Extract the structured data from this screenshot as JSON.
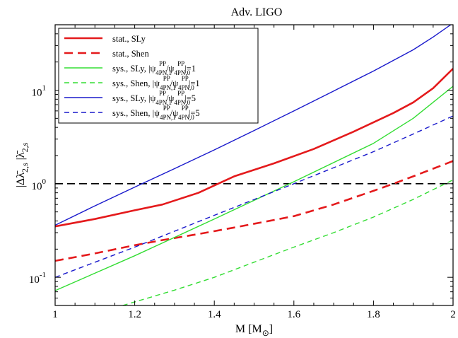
{
  "chart_data": {
    "type": "line",
    "title": "Adv. LIGO",
    "xlabel": "M [M",
    "xlabel_sub": "⊙",
    "xlabel_close": "]",
    "ylabel_parts": [
      "|Δ",
      "λ̄",
      "2,s",
      " |",
      "λ̄",
      "2,s"
    ],
    "xlim": [
      1,
      2
    ],
    "ylim": [
      0.05,
      50
    ],
    "yscale": "log",
    "xticks": [
      "1",
      "1.2",
      "1.4",
      "1.6",
      "1.8",
      "2"
    ],
    "yticks": [
      {
        "base": "10",
        "exp": "-1",
        "value": 0.1
      },
      {
        "base": "10",
        "exp": "0",
        "value": 1
      },
      {
        "base": "10",
        "exp": "1",
        "value": 10
      }
    ],
    "reference_line": {
      "y": 1,
      "color": "#000000",
      "style": "dashed"
    },
    "legend_position": "top-left",
    "series": [
      {
        "name": "stat., SLy",
        "color": "#e41a1c",
        "style": "solid",
        "width": 2.6,
        "x": [
          1.0,
          1.1,
          1.2,
          1.27,
          1.36,
          1.45,
          1.55,
          1.65,
          1.75,
          1.85,
          1.9,
          1.95,
          2.0
        ],
        "y": [
          0.35,
          0.42,
          0.52,
          0.6,
          0.8,
          1.2,
          1.65,
          2.35,
          3.6,
          5.7,
          7.4,
          10.5,
          17
        ]
      },
      {
        "name": "stat., Shen",
        "color": "#e41a1c",
        "style": "dashed",
        "width": 2.6,
        "x": [
          1.0,
          1.1,
          1.2,
          1.27,
          1.36,
          1.45,
          1.55,
          1.6,
          1.7,
          1.8,
          1.85,
          1.9,
          1.95,
          2.0
        ],
        "y": [
          0.15,
          0.18,
          0.22,
          0.25,
          0.29,
          0.34,
          0.41,
          0.45,
          0.6,
          0.84,
          1.0,
          1.2,
          1.45,
          1.75
        ]
      },
      {
        "name": "sys., SLy, |ψ4PN,1PP/ψ4PN,0PP|=1",
        "label_parts": [
          "sys., SLy, |",
          "ψ",
          "4PN,1",
          "PP",
          "/",
          "ψ",
          "4PN,0",
          "PP",
          "|=1"
        ],
        "color": "#33dd33",
        "style": "solid",
        "width": 1.4,
        "x": [
          1.0,
          1.2,
          1.4,
          1.6,
          1.8,
          1.9,
          2.0
        ],
        "y": [
          0.072,
          0.17,
          0.42,
          1.05,
          2.7,
          5.0,
          11
        ]
      },
      {
        "name": "sys., Shen, |ψ4PN,1PP/ψ4PN,0PP|=1",
        "label_parts": [
          "sys., Shen, |",
          "ψ",
          "4PN,1",
          "PP",
          "/",
          "ψ",
          "4PN,0",
          "PP",
          "|=1"
        ],
        "color": "#33dd33",
        "style": "dashed",
        "width": 1.4,
        "x": [
          1.17,
          1.3,
          1.4,
          1.5,
          1.6,
          1.7,
          1.8,
          1.9,
          2.0
        ],
        "y": [
          0.05,
          0.073,
          0.1,
          0.145,
          0.21,
          0.3,
          0.44,
          0.68,
          1.1
        ]
      },
      {
        "name": "sys., SLy, |ψ4PN,1PP/ψ4PN,0PP|=5",
        "label_parts": [
          "sys., SLy, |",
          "ψ",
          "4PN,1",
          "PP",
          "/",
          "ψ",
          "4PN,0",
          "PP",
          "|=5"
        ],
        "color": "#1a1acc",
        "style": "solid",
        "width": 1.4,
        "x": [
          1.0,
          1.1,
          1.2,
          1.3,
          1.4,
          1.5,
          1.6,
          1.7,
          1.8,
          1.9,
          1.95,
          2.0
        ],
        "y": [
          0.36,
          0.58,
          0.92,
          1.45,
          2.3,
          3.7,
          6.0,
          9.8,
          16,
          27,
          37,
          52
        ]
      },
      {
        "name": "sys., Shen, |ψ4PN,1PP/ψ4PN,0PP|=5",
        "label_parts": [
          "sys., Shen, |",
          "ψ",
          "4PN,1",
          "PP",
          "/",
          "ψ",
          "4PN,0",
          "PP",
          "|=5"
        ],
        "color": "#1a1acc",
        "style": "dashed",
        "width": 1.4,
        "x": [
          1.0,
          1.2,
          1.4,
          1.6,
          1.8,
          1.9,
          2.0
        ],
        "y": [
          0.1,
          0.21,
          0.46,
          1.0,
          2.2,
          3.4,
          5.3
        ]
      }
    ]
  }
}
